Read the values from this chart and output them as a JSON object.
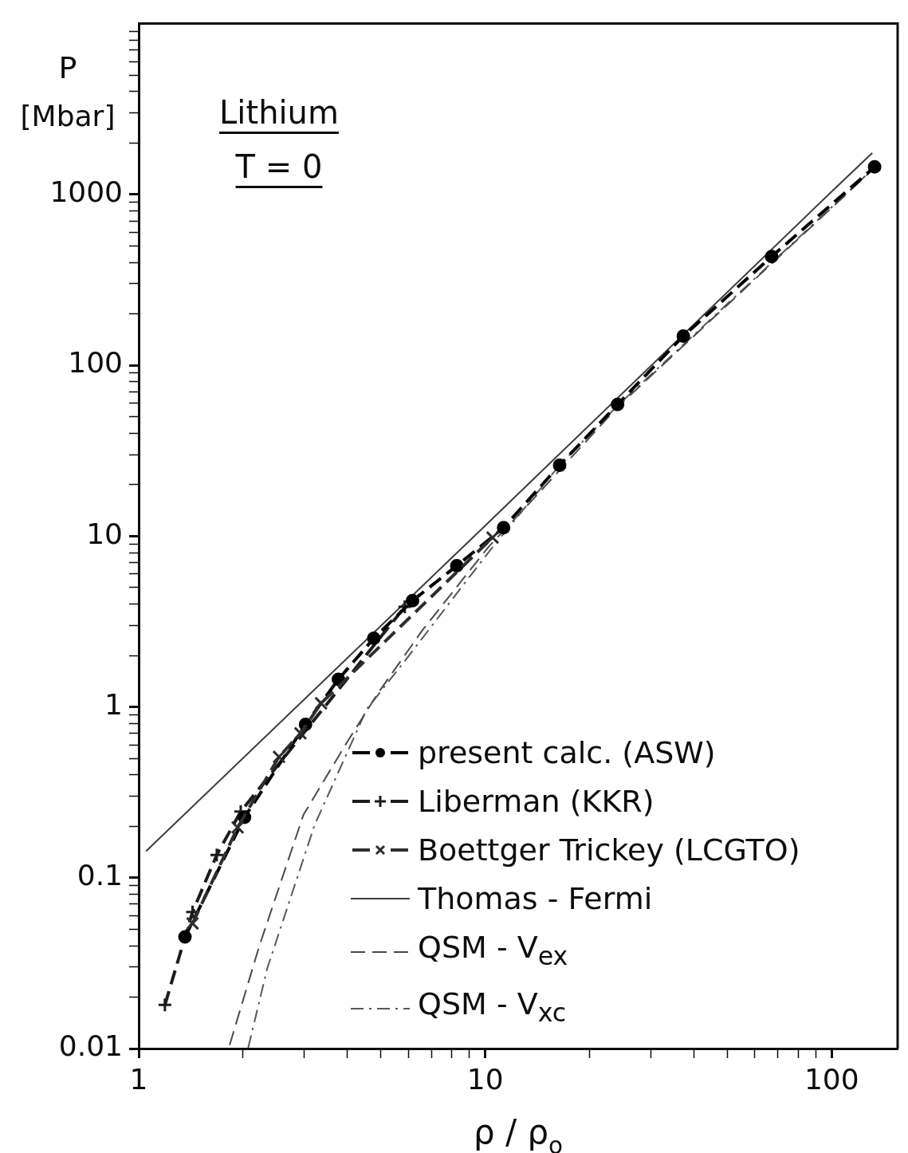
{
  "chart_data": {
    "type": "line",
    "title": "Lithium",
    "subtitle": "T = 0",
    "xlabel": "ρ / ρ$_{o}$",
    "ylabel": "P [Mbar]",
    "log": "xy",
    "grid": false,
    "legend": "bottom right",
    "xlim": [
      1,
      155
    ],
    "ylim": [
      0.01,
      10000
    ],
    "xticks": [
      1,
      {
        "value": 2,
        "label": null
      },
      {
        "value": 3,
        "label": null
      },
      {
        "value": 4,
        "label": null
      },
      {
        "value": 5,
        "label": null
      },
      {
        "value": 6,
        "label": null
      },
      {
        "value": 7,
        "label": null
      },
      {
        "value": 8,
        "label": null
      },
      {
        "value": 9,
        "label": null
      },
      10,
      {
        "value": 20,
        "label": null
      },
      {
        "value": 30,
        "label": null
      },
      {
        "value": 40,
        "label": null
      },
      {
        "value": 50,
        "label": null
      },
      {
        "value": 60,
        "label": null
      },
      {
        "value": 70,
        "label": null
      },
      {
        "value": 80,
        "label": null
      },
      {
        "value": 90,
        "label": null
      },
      100
    ],
    "yticks": [
      0.01,
      {
        "value": 0.02,
        "label": null
      },
      {
        "value": 0.03,
        "label": null
      },
      {
        "value": 0.04,
        "label": null
      },
      {
        "value": 0.05,
        "label": null
      },
      {
        "value": 0.06,
        "label": null
      },
      {
        "value": 0.07,
        "label": null
      },
      {
        "value": 0.08,
        "label": null
      },
      {
        "value": 0.09,
        "label": null
      },
      0.1,
      {
        "value": 0.2,
        "label": null
      },
      {
        "value": 0.3,
        "label": null
      },
      {
        "value": 0.4,
        "label": null
      },
      {
        "value": 0.5,
        "label": null
      },
      {
        "value": 0.6,
        "label": null
      },
      {
        "value": 0.7,
        "label": null
      },
      {
        "value": 0.8,
        "label": null
      },
      {
        "value": 0.9,
        "label": null
      },
      1,
      {
        "value": 2,
        "label": null
      },
      {
        "value": 3,
        "label": null
      },
      {
        "value": 4,
        "label": null
      },
      {
        "value": 5,
        "label": null
      },
      {
        "value": 6,
        "label": null
      },
      {
        "value": 7,
        "label": null
      },
      {
        "value": 8,
        "label": null
      },
      {
        "value": 9,
        "label": null
      },
      10,
      {
        "value": 20,
        "label": null
      },
      {
        "value": 30,
        "label": null
      },
      {
        "value": 40,
        "label": null
      },
      {
        "value": 50,
        "label": null
      },
      {
        "value": 60,
        "label": null
      },
      {
        "value": 70,
        "label": null
      },
      {
        "value": 80,
        "label": null
      },
      {
        "value": 90,
        "label": null
      },
      100,
      {
        "value": 200,
        "label": null
      },
      {
        "value": 300,
        "label": null
      },
      {
        "value": 400,
        "label": null
      },
      {
        "value": 500,
        "label": null
      },
      {
        "value": 600,
        "label": null
      },
      {
        "value": 700,
        "label": null
      },
      {
        "value": 800,
        "label": null
      },
      {
        "value": 900,
        "label": null
      },
      1000,
      {
        "value": 2000,
        "label": null
      },
      {
        "value": 3000,
        "label": null
      },
      {
        "value": 4000,
        "label": null
      },
      {
        "value": 5000,
        "label": null
      },
      {
        "value": 6000,
        "label": null
      },
      {
        "value": 7000,
        "label": null
      },
      {
        "value": 8000,
        "label": null
      },
      {
        "value": 9000,
        "label": null
      }
    ],
    "series": [
      {
        "name": "present calc. (ASW)",
        "type": "line",
        "color": "#000000",
        "marker": "circle",
        "line_style": "dashed",
        "x": [
          1.36,
          2.02,
          3.03,
          3.77,
          4.77,
          6.17,
          8.28,
          11.3,
          16.4,
          24.1,
          37.3,
          67.1,
          133
        ],
        "values": [
          0.045,
          0.226,
          0.79,
          1.45,
          2.52,
          4.19,
          6.7,
          11.2,
          26,
          59,
          148,
          433,
          1450
        ]
      },
      {
        "name": "Liberman (KKR)",
        "type": "line",
        "color": "#1c1c1c",
        "marker": "cross",
        "line_style": "dashed",
        "x": [
          1.19,
          1.43,
          1.68,
          1.97,
          5.86
        ],
        "values": [
          0.018,
          0.063,
          0.136,
          0.244,
          3.85
        ]
      },
      {
        "name": "Boettger Trickey (LCGTO)",
        "type": "line",
        "color": "#2e2e2e",
        "marker": "x",
        "line_style": "dashed",
        "x": [
          1.43,
          1.93,
          2.54,
          2.93,
          3.36,
          10.5
        ],
        "values": [
          0.054,
          0.197,
          0.51,
          0.7,
          1.05,
          9.8
        ]
      },
      {
        "name": "Thomas - Fermi",
        "type": "line",
        "color": "#3c3c3c",
        "marker": "none",
        "line_style": "solid",
        "x": [
          1.05,
          10,
          100,
          131
        ],
        "values": [
          0.143,
          11.5,
          1040,
          1750
        ]
      },
      {
        "name": "QSM - V$_{ex}$",
        "type": "line",
        "color": "#4a4a4a",
        "marker": "none",
        "line_style": "dashed",
        "x": [
          1.83,
          2.23,
          2.99,
          3.97,
          4.9,
          6.58,
          10.2,
          13.7,
          24.1,
          133
        ],
        "values": [
          0.0105,
          0.04,
          0.234,
          0.61,
          1.2,
          2.8,
          8.6,
          16.3,
          57,
          1430
        ]
      },
      {
        "name": "QSM - V$_{xc}$",
        "type": "line",
        "color": "#585858",
        "marker": "none",
        "line_style": "dashdot",
        "x": [
          2.07,
          2.35,
          3.22,
          4.55,
          5.83,
          9.2,
          10.5,
          16.4,
          24.1,
          133
        ],
        "values": [
          0.0101,
          0.0295,
          0.204,
          0.97,
          1.83,
          6.1,
          8.6,
          26,
          58,
          1440
        ]
      }
    ]
  }
}
